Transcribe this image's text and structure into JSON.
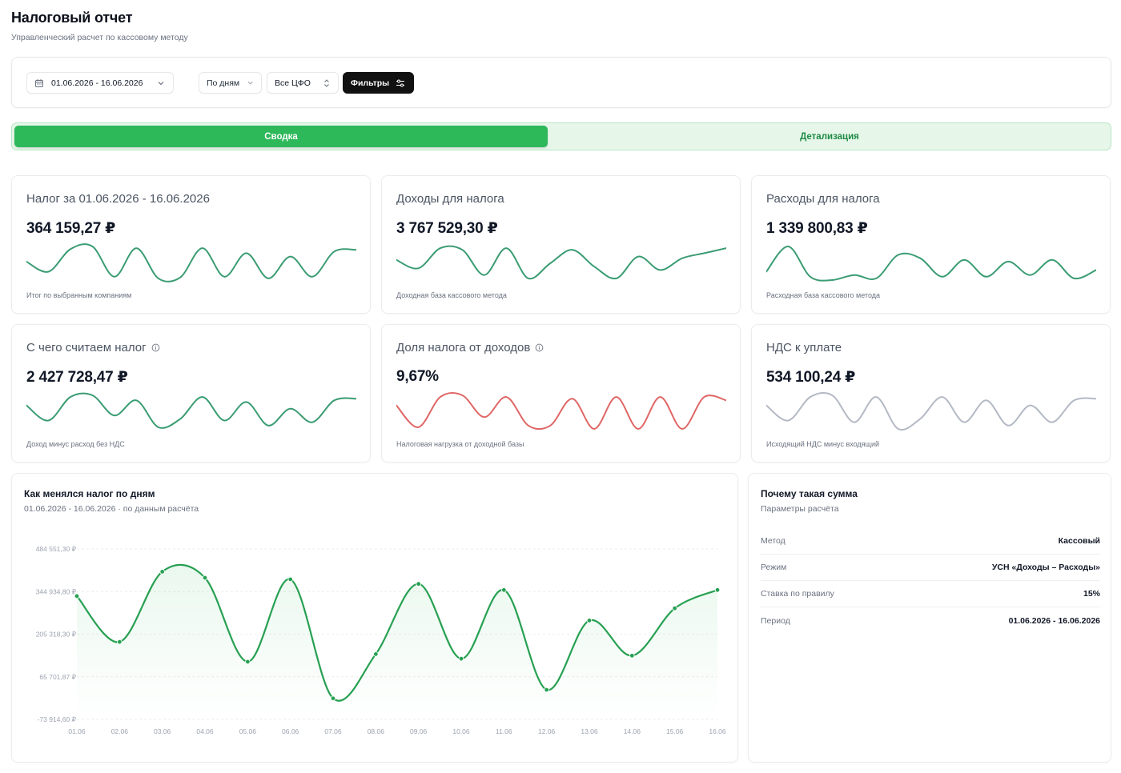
{
  "header": {
    "title": "Налоговый отчет",
    "subtitle": "Управленческий расчет по кассовому методу"
  },
  "toolbar": {
    "date_range": "01.06.2026 - 16.06.2026",
    "grouping": "По дням",
    "cfo": "Все ЦФО",
    "filters_label": "Фильтры",
    "icons": [
      "calendar-icon",
      "chevron-down-icon",
      "chevron-updown-icon",
      "sliders-icon"
    ]
  },
  "tabs": [
    {
      "label": "Сводка",
      "active": true
    },
    {
      "label": "Детализация",
      "active": false
    }
  ],
  "colors": {
    "accent": "#2db85a",
    "spark_green": "#3a9c72",
    "spark_red": "#e06666",
    "spark_gray": "#b3b9c4",
    "chart_line": "#27a052"
  },
  "kpis": [
    {
      "title": "Налог за 01.06.2026 - 16.06.2026",
      "value": "364 159,27 ₽",
      "note": "Итог по выбранным компаниям",
      "info": false,
      "color": "#3a9c72",
      "spark": [
        0.55,
        0.25,
        0.92,
        1.0,
        0.1,
        0.95,
        0.05,
        0.08,
        0.95,
        0.1,
        0.8,
        0.05,
        0.7,
        0.1,
        0.85,
        0.9
      ]
    },
    {
      "title": "Доходы для налога",
      "value": "3 767 529,30 ₽",
      "note": "Доходная база кассового метода",
      "info": false,
      "color": "#3a9c72",
      "spark": [
        0.6,
        0.35,
        0.95,
        0.9,
        0.15,
        0.95,
        0.05,
        0.5,
        0.9,
        0.4,
        0.05,
        0.7,
        0.3,
        0.65,
        0.8,
        0.95
      ]
    },
    {
      "title": "Расходы для налога",
      "value": "1 339 800,83 ₽",
      "note": "Расходная база кассового метода",
      "info": false,
      "color": "#3a9c72",
      "spark": [
        0.25,
        1.0,
        0.1,
        0.0,
        0.15,
        0.05,
        0.75,
        0.65,
        0.1,
        0.6,
        0.1,
        0.55,
        0.15,
        0.6,
        0.05,
        0.3
      ]
    },
    {
      "title": "С чего считаем налог",
      "value": "2 427 728,47 ₽",
      "note": "Доход минус расход без НДС",
      "info": true,
      "color": "#3a9c72",
      "spark": [
        0.7,
        0.25,
        0.95,
        1.0,
        0.4,
        0.85,
        0.05,
        0.3,
        0.95,
        0.25,
        0.8,
        0.1,
        0.6,
        0.2,
        0.85,
        0.9
      ]
    },
    {
      "title": "Доля налога от доходов",
      "value": "9,67%",
      "note": "Налоговая нагрузка от доходной базы",
      "info": true,
      "color": "#e06666",
      "spark": [
        0.7,
        0.05,
        0.95,
        1.0,
        0.35,
        0.95,
        0.1,
        0.1,
        0.9,
        0.0,
        0.95,
        0.0,
        0.95,
        0.0,
        0.95,
        0.85
      ]
    },
    {
      "title": "НДС к уплате",
      "value": "534 100,24 ₽",
      "note": "Исходящий НДС минус входящий",
      "info": false,
      "color": "#b3b9c4",
      "spark": [
        0.7,
        0.25,
        0.95,
        1.0,
        0.2,
        0.95,
        0.0,
        0.3,
        0.95,
        0.2,
        0.85,
        0.1,
        0.7,
        0.2,
        0.85,
        0.9
      ]
    }
  ],
  "main_chart": {
    "title": "Как менялся налог по дням",
    "subtitle": "01.06.2026 - 16.06.2026 · по данным расчёта"
  },
  "chart_data": {
    "type": "line",
    "title": "Как менялся налог по дням",
    "x": [
      "01.06",
      "02.06",
      "03.06",
      "04.06",
      "05.06",
      "06.06",
      "07.06",
      "08.06",
      "09.06",
      "10.06",
      "11.06",
      "12.06",
      "13.06",
      "14.06",
      "15.06",
      "16.06"
    ],
    "series": [
      {
        "values": [
          330000,
          180000,
          410000,
          390000,
          115000,
          385000,
          -5000,
          140000,
          370000,
          125000,
          350000,
          23000,
          250000,
          135000,
          290000,
          350000
        ]
      }
    ],
    "y_ticks": [
      "484 551,30 ₽",
      "344 934,80 ₽",
      "205 318,30 ₽",
      "65 701,87 ₽",
      "-73 914,60 ₽"
    ],
    "ylim": [
      -73914.6,
      484551.3
    ],
    "grid": true,
    "area_fill": true
  },
  "why": {
    "title": "Почему такая сумма",
    "subtitle": "Параметры расчёта",
    "rows": [
      {
        "label": "Метод",
        "value": "Кассовый"
      },
      {
        "label": "Режим",
        "value": "УСН «Доходы – Расходы»"
      },
      {
        "label": "Ставка по правилу",
        "value": "15%"
      },
      {
        "label": "Период",
        "value": "01.06.2026 - 16.06.2026"
      }
    ]
  }
}
